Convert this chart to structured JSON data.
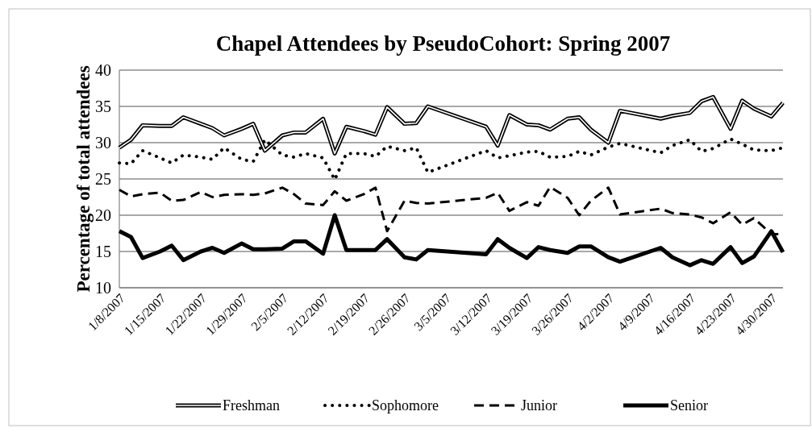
{
  "chart_data": {
    "type": "line",
    "title": "Chapel Attendees by PseudoCohort: Spring 2007",
    "ylabel": "Percentage of total attendees",
    "x": [
      "2007-01-08",
      "2007-01-10",
      "2007-01-12",
      "2007-01-15",
      "2007-01-17",
      "2007-01-19",
      "2007-01-22",
      "2007-01-24",
      "2007-01-26",
      "2007-01-29",
      "2007-01-31",
      "2007-02-02",
      "2007-02-05",
      "2007-02-07",
      "2007-02-09",
      "2007-02-12",
      "2007-02-14",
      "2007-02-16",
      "2007-02-19",
      "2007-02-21",
      "2007-02-23",
      "2007-02-26",
      "2007-02-28",
      "2007-03-02",
      "2007-03-12",
      "2007-03-14",
      "2007-03-16",
      "2007-03-19",
      "2007-03-21",
      "2007-03-23",
      "2007-03-26",
      "2007-03-28",
      "2007-03-30",
      "2007-04-02",
      "2007-04-04",
      "2007-04-11",
      "2007-04-13",
      "2007-04-16",
      "2007-04-18",
      "2007-04-20",
      "2007-04-23",
      "2007-04-25",
      "2007-04-27",
      "2007-04-30",
      "2007-05-02"
    ],
    "series": [
      {
        "name": "Freshman",
        "color": "#000000",
        "line_style": "solid",
        "values": [
          29.3,
          30.4,
          32.4,
          32.3,
          32.3,
          33.5,
          32.6,
          32.0,
          31.0,
          31.9,
          32.6,
          28.9,
          31.0,
          31.4,
          31.4,
          33.3,
          28.5,
          32.2,
          31.6,
          31.1,
          34.9,
          32.6,
          32.7,
          35.0,
          32.2,
          29.6,
          33.8,
          32.5,
          32.4,
          31.8,
          33.3,
          33.5,
          31.8,
          30.0,
          34.4,
          33.3,
          33.7,
          34.1,
          35.7,
          36.3,
          31.9,
          35.8,
          34.7,
          33.6,
          35.5
        ]
      },
      {
        "name": "Sophomore",
        "color": "#000000",
        "line_style": "dotted",
        "values": [
          27.2,
          27.1,
          28.9,
          27.9,
          27.2,
          28.3,
          28.0,
          27.7,
          29.3,
          27.7,
          27.4,
          30.4,
          28.3,
          28.0,
          28.5,
          27.9,
          24.9,
          28.5,
          28.5,
          28.1,
          29.5,
          28.9,
          29.3,
          25.9,
          28.9,
          27.9,
          28.2,
          28.7,
          28.8,
          28.0,
          28.1,
          28.8,
          28.3,
          29.4,
          29.9,
          28.6,
          29.6,
          30.4,
          28.8,
          29.2,
          30.5,
          29.8,
          29.0,
          28.9,
          29.3
        ]
      },
      {
        "name": "Junior",
        "color": "#000000",
        "line_style": "dashed",
        "values": [
          23.5,
          22.6,
          22.9,
          23.1,
          22.0,
          22.1,
          23.2,
          22.5,
          22.8,
          22.9,
          22.8,
          23.0,
          23.8,
          22.9,
          21.6,
          21.4,
          23.3,
          22.0,
          22.9,
          23.8,
          17.8,
          22.0,
          21.7,
          21.6,
          22.4,
          23.1,
          20.6,
          21.8,
          21.3,
          23.9,
          22.4,
          20.0,
          22.0,
          23.8,
          20.1,
          20.9,
          20.3,
          20.1,
          19.7,
          18.9,
          20.4,
          18.7,
          19.6,
          17.4,
          17.4
        ]
      },
      {
        "name": "Senior",
        "color": "#000000",
        "line_style": "solid",
        "values": [
          17.8,
          17.0,
          14.1,
          15.0,
          15.8,
          13.8,
          15.0,
          15.5,
          14.8,
          16.1,
          15.3,
          15.3,
          15.4,
          16.4,
          16.4,
          14.7,
          20.0,
          15.2,
          15.2,
          15.2,
          16.7,
          14.2,
          13.9,
          15.2,
          14.6,
          16.7,
          15.5,
          14.1,
          15.6,
          15.2,
          14.8,
          15.7,
          15.7,
          14.2,
          13.6,
          15.5,
          14.2,
          13.1,
          13.8,
          13.3,
          15.6,
          13.4,
          14.3,
          17.8,
          14.9
        ]
      }
    ],
    "xlim": [
      "2007-01-08",
      "2007-05-02"
    ],
    "xticks": [
      {
        "value": "2007-01-08",
        "label": "1/8/2007"
      },
      {
        "value": "2007-01-15",
        "label": "1/15/2007"
      },
      {
        "value": "2007-01-22",
        "label": "1/22/2007"
      },
      {
        "value": "2007-01-29",
        "label": "1/29/2007"
      },
      {
        "value": "2007-02-05",
        "label": "2/5/2007"
      },
      {
        "value": "2007-02-12",
        "label": "2/12/2007"
      },
      {
        "value": "2007-02-19",
        "label": "2/19/2007"
      },
      {
        "value": "2007-02-26",
        "label": "2/26/2007"
      },
      {
        "value": "2007-03-05",
        "label": "3/5/2007"
      },
      {
        "value": "2007-03-12",
        "label": "3/12/2007"
      },
      {
        "value": "2007-03-19",
        "label": "3/19/2007"
      },
      {
        "value": "2007-03-26",
        "label": "3/26/2007"
      },
      {
        "value": "2007-04-02",
        "label": "4/2/2007"
      },
      {
        "value": "2007-04-09",
        "label": "4/9/2007"
      },
      {
        "value": "2007-04-16",
        "label": "4/16/2007"
      },
      {
        "value": "2007-04-23",
        "label": "4/23/2007"
      },
      {
        "value": "2007-04-30",
        "label": "4/30/2007"
      }
    ],
    "ylim": [
      10,
      40
    ],
    "yticks": [
      10,
      15,
      20,
      25,
      30,
      35,
      40
    ],
    "grid": "y",
    "legend": "bottom",
    "marker": "none"
  }
}
